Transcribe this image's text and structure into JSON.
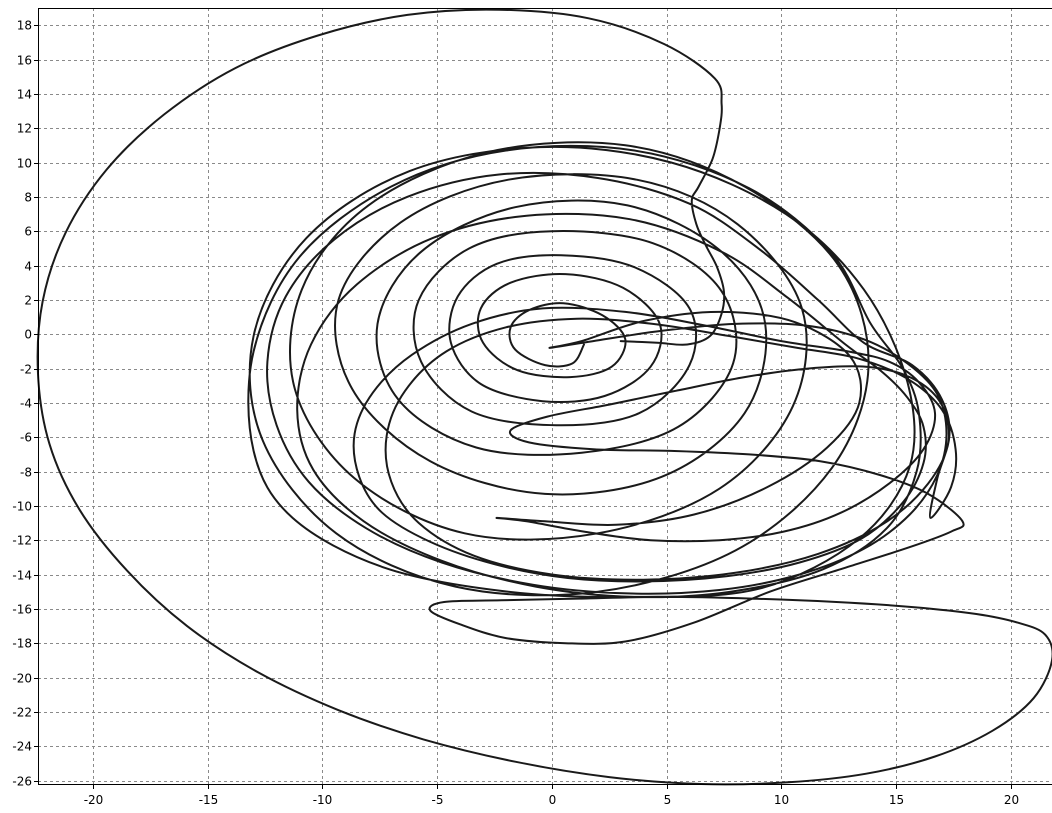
{
  "chart_data": {
    "type": "line",
    "title": "",
    "xlabel": "",
    "ylabel": "",
    "xlim": [
      -22.4,
      21.8
    ],
    "ylim": [
      -26.2,
      19.0
    ],
    "grid": true,
    "x_ticks": [
      -20,
      -15,
      -10,
      -5,
      0,
      5,
      10,
      15,
      20
    ],
    "y_ticks": [
      18,
      16,
      14,
      12,
      10,
      8,
      6,
      4,
      2,
      0,
      -2,
      -4,
      -6,
      -8,
      -10,
      -12,
      -14,
      -16,
      -18,
      -20,
      -22,
      -24,
      -26
    ],
    "x_tick_labels": [
      "-20",
      "-15",
      "-10",
      "-5",
      "0",
      "5",
      "10",
      "15",
      "20"
    ],
    "y_tick_labels": [
      "18",
      "16",
      "14",
      "12",
      "10",
      "8",
      "6",
      "4",
      "2",
      "0",
      "-2",
      "-4",
      "-6",
      "-8",
      "-10",
      "-12",
      "-14",
      "-16",
      "-18",
      "-20",
      "-22",
      "-24",
      "-26"
    ],
    "series": [
      {
        "points": [
          [
            1.4,
            -0.6
          ],
          [
            0.9,
            -1.7
          ],
          [
            -0.3,
            -1.8
          ],
          [
            -1.6,
            -0.9
          ],
          [
            -1.8,
            0.4
          ],
          [
            -1.0,
            1.4
          ],
          [
            0.5,
            1.8
          ],
          [
            2.2,
            1.1
          ],
          [
            3.2,
            -0.3
          ],
          [
            2.6,
            -1.9
          ],
          [
            0.8,
            -2.5
          ],
          [
            -1.5,
            -2.1
          ],
          [
            -3.0,
            -0.5
          ],
          [
            -3.1,
            1.5
          ],
          [
            -1.8,
            3.0
          ],
          [
            0.6,
            3.5
          ],
          [
            3.1,
            2.7
          ],
          [
            4.7,
            0.6
          ],
          [
            4.3,
            -1.9
          ],
          [
            2.3,
            -3.6
          ],
          [
            -0.4,
            -3.9
          ],
          [
            -3.1,
            -2.9
          ],
          [
            -4.4,
            -0.5
          ],
          [
            -4.1,
            2.2
          ],
          [
            -2.4,
            4.1
          ],
          [
            0.4,
            4.6
          ],
          [
            3.6,
            3.9
          ],
          [
            6.0,
            1.5
          ],
          [
            6.0,
            -1.8
          ],
          [
            3.8,
            -4.6
          ],
          [
            0.2,
            -5.3
          ],
          [
            -3.5,
            -4.5
          ],
          [
            -5.7,
            -1.6
          ],
          [
            -5.8,
            2.0
          ],
          [
            -3.6,
            5.0
          ],
          [
            0.0,
            6.0
          ],
          [
            4.4,
            5.3
          ],
          [
            7.4,
            2.5
          ],
          [
            7.9,
            -1.7
          ],
          [
            5.5,
            -5.4
          ],
          [
            1.3,
            -6.9
          ],
          [
            -3.3,
            -6.6
          ],
          [
            -6.7,
            -3.8
          ],
          [
            -7.6,
            0.6
          ],
          [
            -5.7,
            4.8
          ],
          [
            -1.6,
            7.4
          ],
          [
            3.3,
            7.5
          ],
          [
            7.4,
            4.8
          ],
          [
            9.3,
            0.6
          ],
          [
            8.4,
            -4.6
          ],
          [
            4.8,
            -8.3
          ],
          [
            -0.3,
            -9.3
          ],
          [
            -5.3,
            -7.4
          ],
          [
            -8.7,
            -3.2
          ],
          [
            -9.3,
            2.0
          ],
          [
            -6.6,
            6.5
          ],
          [
            -1.9,
            9.0
          ],
          [
            3.7,
            9.0
          ],
          [
            8.1,
            6.4
          ],
          [
            10.9,
            1.5
          ],
          [
            10.5,
            -4.2
          ],
          [
            7.3,
            -9.0
          ],
          [
            2.0,
            -11.6
          ],
          [
            -3.8,
            -11.6
          ],
          [
            -8.6,
            -8.4
          ],
          [
            -11.2,
            -3.2
          ],
          [
            -10.9,
            2.6
          ],
          [
            -8.0,
            7.5
          ],
          [
            -2.8,
            10.6
          ],
          [
            3.2,
            11.0
          ],
          [
            8.4,
            8.6
          ],
          [
            12.5,
            4.0
          ],
          [
            13.8,
            -1.9
          ],
          [
            12.2,
            -7.8
          ],
          [
            8.0,
            -12.6
          ],
          [
            2.0,
            -15.0
          ],
          [
            -4.2,
            -14.7
          ],
          [
            -9.4,
            -11.6
          ],
          [
            -12.6,
            -6.2
          ],
          [
            -13.0,
            -0.1
          ],
          [
            -10.7,
            5.6
          ],
          [
            -6.2,
            9.5
          ],
          [
            -0.5,
            10.9
          ],
          [
            5.2,
            10.0
          ],
          [
            10.2,
            7.0
          ],
          [
            13.6,
            2.6
          ],
          [
            15.5,
            -2.8
          ],
          [
            15.6,
            -7.7
          ],
          [
            13.4,
            -11.9
          ],
          [
            9.1,
            -14.8
          ],
          [
            3.7,
            -15.3
          ],
          [
            -1.9,
            -15.0
          ],
          [
            -7.3,
            -13.6
          ],
          [
            -11.3,
            -10.7
          ],
          [
            -13.0,
            -6.8
          ],
          [
            -13.0,
            -1.0
          ],
          [
            -11.0,
            4.5
          ],
          [
            -7.0,
            8.6
          ],
          [
            -2.0,
            10.7
          ],
          [
            3.6,
            10.7
          ],
          [
            8.6,
            8.5
          ],
          [
            12.2,
            4.7
          ],
          [
            13.9,
            0.6
          ],
          [
            15.3,
            -2.0
          ],
          [
            16.0,
            -4.6
          ],
          [
            15.9,
            -8.0
          ],
          [
            14.6,
            -11.3
          ],
          [
            11.8,
            -13.7
          ],
          [
            7.8,
            -15.0
          ],
          [
            3.6,
            -15.3
          ],
          [
            -0.7,
            -14.7
          ],
          [
            -4.8,
            -13.2
          ],
          [
            -8.2,
            -10.9
          ],
          [
            -10.4,
            -7.9
          ],
          [
            -11.1,
            -4.4
          ],
          [
            -10.5,
            -0.6
          ],
          [
            -8.5,
            2.9
          ],
          [
            -5.2,
            5.6
          ],
          [
            -1.1,
            6.9
          ],
          [
            3.4,
            6.7
          ],
          [
            7.4,
            4.8
          ],
          [
            10.3,
            2.1
          ],
          [
            12.8,
            -0.6
          ],
          [
            14.4,
            -2.2
          ],
          [
            15.5,
            -3.7
          ],
          [
            16.2,
            -5.4
          ],
          [
            16.2,
            -7.5
          ],
          [
            15.3,
            -9.8
          ],
          [
            13.5,
            -11.9
          ],
          [
            10.8,
            -13.3
          ],
          [
            7.6,
            -14.1
          ],
          [
            4.1,
            -14.4
          ],
          [
            0.7,
            -14.2
          ],
          [
            -2.5,
            -13.4
          ],
          [
            -5.3,
            -12.1
          ],
          [
            -7.4,
            -10.4
          ],
          [
            -8.4,
            -8.3
          ],
          [
            -8.6,
            -5.8
          ],
          [
            -7.8,
            -3.4
          ],
          [
            -6.1,
            -1.2
          ],
          [
            -3.5,
            0.6
          ],
          [
            -0.4,
            1.5
          ],
          [
            3.2,
            1.3
          ],
          [
            6.7,
            0.5
          ],
          [
            10.0,
            -0.4
          ],
          [
            12.9,
            -1.0
          ],
          [
            14.7,
            -1.6
          ],
          [
            16.0,
            -2.8
          ],
          [
            16.7,
            -4.6
          ],
          [
            16.2,
            -6.7
          ],
          [
            14.7,
            -8.7
          ],
          [
            12.6,
            -10.4
          ],
          [
            10.1,
            -11.5
          ],
          [
            7.3,
            -12.0
          ],
          [
            4.3,
            -12.0
          ],
          [
            1.4,
            -11.5
          ],
          [
            -1.1,
            -10.9
          ],
          [
            -2.4,
            -10.7
          ],
          [
            -0.3,
            -10.9
          ],
          [
            2.8,
            -11.1
          ],
          [
            6.2,
            -10.5
          ],
          [
            9.4,
            -8.9
          ],
          [
            12.0,
            -6.6
          ],
          [
            13.4,
            -4.0
          ],
          [
            13.0,
            -1.3
          ],
          [
            10.6,
            0.7
          ],
          [
            7.4,
            1.3
          ],
          [
            4.1,
            0.8
          ],
          [
            1.3,
            -0.4
          ],
          [
            -0.1,
            -0.8
          ],
          [
            1.8,
            -0.4
          ],
          [
            4.8,
            0.2
          ],
          [
            8.0,
            0.6
          ],
          [
            11.1,
            0.5
          ],
          [
            13.6,
            -0.3
          ],
          [
            15.5,
            -1.7
          ],
          [
            16.8,
            -3.5
          ],
          [
            17.2,
            -5.8
          ],
          [
            16.8,
            -8.2
          ],
          [
            15.6,
            -10.5
          ],
          [
            13.6,
            -12.5
          ],
          [
            10.8,
            -14.0
          ],
          [
            7.3,
            -14.9
          ],
          [
            3.3,
            -15.1
          ],
          [
            -0.8,
            -14.6
          ],
          [
            -4.8,
            -13.3
          ],
          [
            -8.1,
            -11.3
          ],
          [
            -10.6,
            -8.6
          ],
          [
            -12.0,
            -5.3
          ],
          [
            -12.4,
            -1.6
          ],
          [
            -11.6,
            2.2
          ],
          [
            -9.5,
            5.5
          ],
          [
            -6.3,
            8.0
          ],
          [
            -2.3,
            9.3
          ],
          [
            2.0,
            9.1
          ],
          [
            6.0,
            7.6
          ],
          [
            9.0,
            5.0
          ],
          [
            11.6,
            2.0
          ],
          [
            13.6,
            -0.5
          ],
          [
            15.7,
            -1.8
          ],
          [
            17.0,
            -3.8
          ],
          [
            17.3,
            -6.2
          ],
          [
            16.4,
            -8.7
          ],
          [
            14.5,
            -11.0
          ],
          [
            11.6,
            -12.8
          ],
          [
            8.0,
            -13.9
          ],
          [
            4.0,
            -14.3
          ],
          [
            0.0,
            -14.0
          ],
          [
            -3.4,
            -12.9
          ],
          [
            -5.8,
            -11.0
          ],
          [
            -7.0,
            -8.6
          ],
          [
            -7.2,
            -5.9
          ],
          [
            -6.4,
            -3.3
          ],
          [
            -4.6,
            -1.0
          ],
          [
            -2.0,
            0.4
          ],
          [
            1.1,
            0.9
          ],
          [
            4.4,
            0.6
          ],
          [
            7.7,
            -0.1
          ],
          [
            10.7,
            -0.8
          ],
          [
            13.3,
            -1.4
          ],
          [
            15.5,
            -2.6
          ],
          [
            17.0,
            -4.4
          ],
          [
            17.6,
            -6.7
          ],
          [
            17.4,
            -8.9
          ],
          [
            16.5,
            -10.7
          ],
          [
            16.8,
            -8.4
          ],
          [
            17.3,
            -6.0
          ],
          [
            16.9,
            -3.9
          ],
          [
            15.6,
            -2.5
          ],
          [
            13.7,
            -1.9
          ],
          [
            11.2,
            -2.0
          ],
          [
            8.4,
            -2.5
          ],
          [
            5.4,
            -3.3
          ],
          [
            2.5,
            -4.1
          ],
          [
            -0.2,
            -4.8
          ],
          [
            -1.8,
            -5.6
          ],
          [
            -1.0,
            -6.3
          ],
          [
            1.8,
            -6.7
          ],
          [
            5.2,
            -6.8
          ],
          [
            8.6,
            -7.0
          ],
          [
            11.7,
            -7.4
          ],
          [
            14.3,
            -8.2
          ],
          [
            16.4,
            -9.3
          ],
          [
            17.9,
            -10.9
          ],
          [
            17.4,
            -11.5
          ],
          [
            15.6,
            -12.4
          ],
          [
            12.8,
            -13.6
          ],
          [
            9.5,
            -15.0
          ],
          [
            6.2,
            -16.8
          ],
          [
            3.2,
            -17.9
          ],
          [
            0.6,
            -18.0
          ],
          [
            -2.0,
            -17.7
          ],
          [
            -4.0,
            -16.9
          ],
          [
            -5.3,
            -16.1
          ],
          [
            -4.7,
            -15.6
          ],
          [
            -2.2,
            -15.5
          ],
          [
            1.2,
            -15.4
          ],
          [
            4.9,
            -15.3
          ],
          [
            8.7,
            -15.4
          ],
          [
            12.4,
            -15.6
          ],
          [
            15.8,
            -15.9
          ],
          [
            18.5,
            -16.3
          ],
          [
            20.3,
            -16.8
          ],
          [
            21.5,
            -17.5
          ],
          [
            21.8,
            -19.0
          ],
          [
            21.0,
            -21.2
          ],
          [
            19.2,
            -23.1
          ],
          [
            16.7,
            -24.6
          ],
          [
            13.7,
            -25.6
          ],
          [
            10.3,
            -26.1
          ],
          [
            6.5,
            -26.2
          ],
          [
            2.5,
            -25.8
          ],
          [
            -1.6,
            -24.9
          ],
          [
            -5.6,
            -23.6
          ],
          [
            -9.3,
            -21.9
          ],
          [
            -12.8,
            -19.7
          ],
          [
            -15.9,
            -17.0
          ],
          [
            -18.5,
            -13.8
          ],
          [
            -20.6,
            -10.2
          ],
          [
            -21.9,
            -6.4
          ],
          [
            -22.4,
            -2.3
          ],
          [
            -22.2,
            1.9
          ],
          [
            -21.2,
            5.9
          ],
          [
            -19.4,
            9.6
          ],
          [
            -16.9,
            12.8
          ],
          [
            -13.8,
            15.5
          ],
          [
            -10.2,
            17.4
          ],
          [
            -6.3,
            18.6
          ],
          [
            -2.3,
            18.9
          ],
          [
            1.6,
            18.4
          ],
          [
            4.9,
            16.9
          ],
          [
            7.1,
            14.9
          ],
          [
            7.4,
            13.4
          ],
          [
            7.3,
            11.9
          ],
          [
            7.0,
            10.2
          ],
          [
            6.4,
            8.6
          ],
          [
            6.1,
            7.8
          ],
          [
            6.3,
            6.4
          ],
          [
            6.7,
            5.2
          ],
          [
            7.2,
            3.9
          ],
          [
            7.5,
            2.5
          ],
          [
            7.4,
            1.2
          ],
          [
            6.9,
            -0.1
          ],
          [
            5.9,
            -0.6
          ],
          [
            4.6,
            -0.5
          ],
          [
            3.0,
            -0.4
          ]
        ]
      }
    ]
  }
}
